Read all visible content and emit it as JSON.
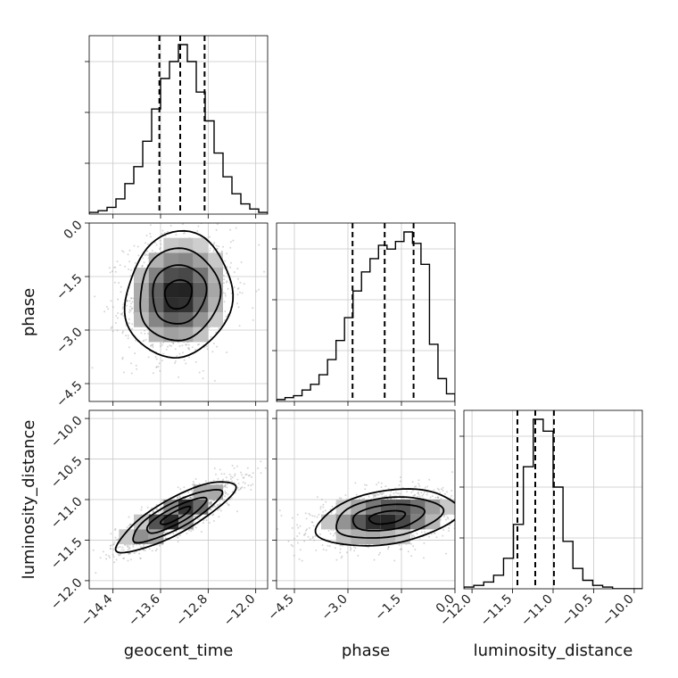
{
  "chart_data": {
    "type": "corner",
    "parameters": [
      {
        "name": "geocent_time",
        "label": "geocent_time",
        "range": [
          -14.8,
          -11.8
        ],
        "ticks": [
          "−14.4",
          "−13.6",
          "−12.8",
          "−12.0"
        ],
        "tick_values": [
          -14.4,
          -13.6,
          -12.8,
          -12.0
        ],
        "quantiles": [
          -13.62,
          -13.27,
          -12.86
        ]
      },
      {
        "name": "phase",
        "label": "phase",
        "range": [
          -5.0,
          0.0
        ],
        "ticks": [
          "−4.5",
          "−3.0",
          "−1.5",
          "0.0"
        ],
        "tick_values": [
          -4.5,
          -3.0,
          -1.5,
          0.0
        ],
        "quantiles": [
          -2.87,
          -1.97,
          -1.16
        ]
      },
      {
        "name": "luminosity_distance",
        "label": "luminosity_distance",
        "range": [
          -12.1,
          -9.9
        ],
        "ticks": [
          "−12.0",
          "−11.5",
          "−11.0",
          "−10.5",
          "−10.0"
        ],
        "tick_values": [
          -12.0,
          -11.5,
          -11.0,
          -10.5,
          -10.0
        ],
        "quantiles": [
          -11.44,
          -11.22,
          -10.99
        ]
      }
    ],
    "histograms": [
      {
        "parameter": "geocent_time",
        "counts": [
          1,
          2,
          4,
          9,
          18,
          28,
          43,
          62,
          80,
          90,
          100,
          90,
          72,
          55,
          36,
          22,
          12,
          6,
          3,
          1
        ]
      },
      {
        "parameter": "phase",
        "counts": [
          1,
          2,
          3,
          6,
          9,
          14,
          22,
          32,
          44,
          58,
          68,
          75,
          82,
          80,
          84,
          89,
          83,
          72,
          30,
          12,
          4
        ]
      },
      {
        "parameter": "luminosity_distance",
        "counts": [
          1,
          2,
          4,
          8,
          18,
          38,
          72,
          100,
          93,
          60,
          28,
          12,
          5,
          2,
          1,
          0,
          0,
          0
        ]
      }
    ],
    "scatter_2d": [
      {
        "x": "geocent_time",
        "y": "phase",
        "center": [
          -13.3,
          -2.0
        ],
        "sd": [
          0.45,
          0.85
        ],
        "correlation": 0.1
      },
      {
        "x": "geocent_time",
        "y": "luminosity_distance",
        "center": [
          -13.35,
          -11.2
        ],
        "sd": [
          0.5,
          0.22
        ],
        "correlation": 0.85
      },
      {
        "x": "phase",
        "y": "luminosity_distance",
        "center": [
          -1.9,
          -11.22
        ],
        "sd": [
          1.0,
          0.17
        ],
        "correlation": 0.35
      }
    ],
    "contour_levels": 4,
    "grid": true
  }
}
